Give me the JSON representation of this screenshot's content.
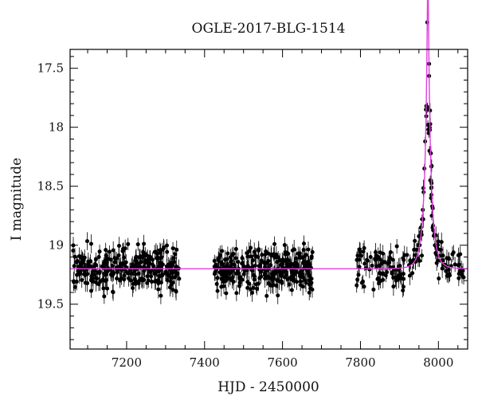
{
  "chart_data": {
    "type": "scatter",
    "title": "OGLE-2017-BLG-1514",
    "xlabel": "HJD - 2450000",
    "ylabel": "I magnitude",
    "xlim": [
      7055,
      8075
    ],
    "ylim": [
      19.88,
      17.34
    ],
    "y_inverted": true,
    "grid": false,
    "x_ticks": [
      7200,
      7400,
      7600,
      7800,
      8000
    ],
    "y_ticks": [
      17.5,
      18,
      18.5,
      19,
      19.5
    ],
    "x_tick_labels": [
      "7200",
      "7400",
      "7600",
      "7800",
      "8000"
    ],
    "y_tick_labels": [
      "17.5",
      "18",
      "18.5",
      "19",
      "19.5"
    ],
    "colors": {
      "points": "#000000",
      "model": "#e040e0"
    },
    "model": {
      "name": "",
      "baseline": 19.2,
      "t0": 7973,
      "tE": 18,
      "u0": 0.09,
      "fs": 0.85
    },
    "series": [
      {
        "name": "",
        "seasons": [
          {
            "start": 7062,
            "end": 7335,
            "n": 300,
            "mean": 19.2,
            "sd": 0.095
          },
          {
            "start": 7425,
            "end": 7680,
            "n": 290,
            "mean": 19.2,
            "sd": 0.095
          },
          {
            "start": 7790,
            "end": 8065,
            "n": 170,
            "mean": 19.2,
            "sd": 0.085
          }
        ],
        "error_bar": 0.065,
        "peak_points": [
          [
            7968,
            17.85
          ],
          [
            7969,
            17.82
          ],
          [
            7970,
            17.85
          ],
          [
            7971,
            17.84
          ],
          [
            7972,
            17.83
          ],
          [
            7973,
            17.98
          ],
          [
            7974,
            18.02
          ],
          [
            7975,
            18.05
          ],
          [
            7966,
            18.12
          ],
          [
            7977,
            18.2
          ],
          [
            7964,
            18.35
          ],
          [
            7979,
            18.45
          ],
          [
            7962,
            18.55
          ],
          [
            7981,
            18.6
          ],
          [
            7960,
            18.7
          ],
          [
            7983,
            18.75
          ],
          [
            7958,
            18.78
          ],
          [
            7985,
            18.85
          ],
          [
            7955,
            18.85
          ],
          [
            7988,
            18.92
          ],
          [
            7952,
            18.92
          ],
          [
            7991,
            19.0
          ],
          [
            7948,
            19.0
          ],
          [
            7995,
            19.08
          ]
        ]
      }
    ]
  }
}
